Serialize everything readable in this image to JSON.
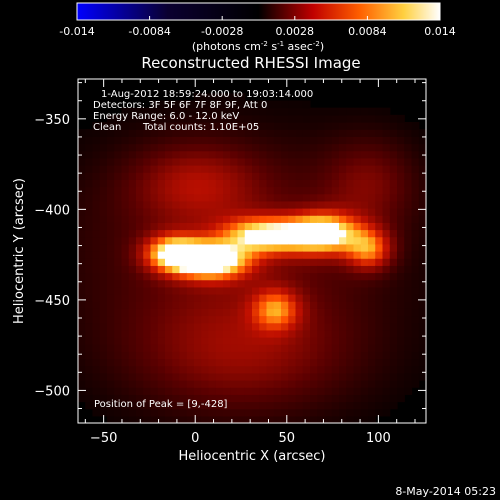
{
  "colorbar": {
    "ticks": [
      "-0.014",
      "-0.0084",
      "-0.0028",
      "0.0028",
      "0.0084",
      "0.014"
    ],
    "unit_label": "(photons cm",
    "unit_sup1": "-2",
    "unit_mid": " s",
    "unit_sup2": "-1",
    "unit_end": " asec",
    "unit_sup3": "-2",
    "unit_close": ")"
  },
  "annotations": {
    "time_range": "1-Aug-2012 18:59:24.000 to 19:03:14.000",
    "detectors": "Detectors: 3F 5F 6F 7F 8F 9F, Att 0",
    "energy": "Energy Range: 6.0 - 12.0 keV",
    "method": "Clean",
    "counts": "Total counts: 1.10E+05",
    "peak": "Position of Peak = [9,-428]"
  },
  "footer": {
    "date": "8-May-2014 05:23"
  },
  "chart_data": {
    "type": "heatmap",
    "title": "Reconstructed RHESSI Image",
    "xlabel": "Heliocentric X (arcsec)",
    "ylabel": "Heliocentric Y (arcsec)",
    "xlim": [
      -64,
      126
    ],
    "ylim": [
      -518,
      -328
    ],
    "x_ticks": [
      -50,
      0,
      50,
      100
    ],
    "y_ticks": [
      -350,
      -400,
      -450,
      -500
    ],
    "colorscale": {
      "name": "red-temperature",
      "range": [
        -0.014,
        0.014
      ],
      "stops": [
        "#0000ff",
        "#0a0030",
        "#000000",
        "#c00000",
        "#ff6000",
        "#ffd040",
        "#ffffff"
      ]
    },
    "sources": [
      {
        "x": 9,
        "y": -428,
        "sx": 14,
        "sy": 7,
        "amp": 0.0136
      },
      {
        "x": -12,
        "y": -424,
        "sx": 11,
        "sy": 7,
        "amp": 0.011
      },
      {
        "x": 38,
        "y": -414,
        "sx": 16,
        "sy": 7,
        "amp": 0.011
      },
      {
        "x": 70,
        "y": -413,
        "sx": 14,
        "sy": 8,
        "amp": 0.0125
      },
      {
        "x": 95,
        "y": -422,
        "sx": 9,
        "sy": 8,
        "amp": 0.008
      },
      {
        "x": 44,
        "y": -455,
        "sx": 9,
        "sy": 8,
        "amp": 0.0068
      },
      {
        "x": 0,
        "y": -385,
        "sx": 25,
        "sy": 16,
        "amp": 0.0042
      },
      {
        "x": 25,
        "y": -480,
        "sx": 45,
        "sy": 25,
        "amp": 0.0045
      },
      {
        "x": 95,
        "y": -385,
        "sx": 18,
        "sy": 18,
        "amp": 0.0035
      },
      {
        "x": 20,
        "y": -420,
        "sx": 65,
        "sy": 42,
        "amp": 0.0036
      }
    ]
  }
}
